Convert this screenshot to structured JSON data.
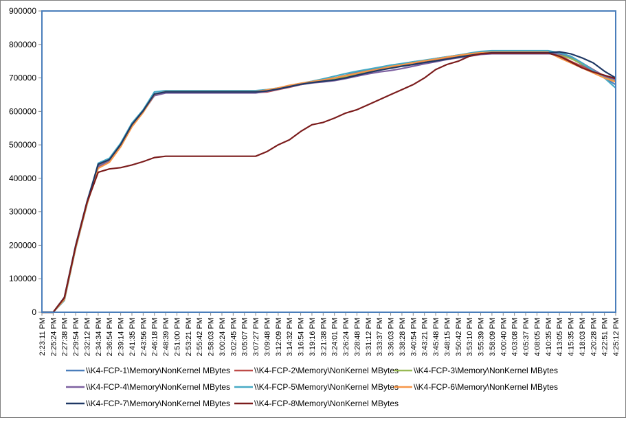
{
  "chart_data": {
    "type": "line",
    "title": "",
    "xlabel": "",
    "ylabel": "",
    "ylim": [
      0,
      900000
    ],
    "y_ticks": [
      "0",
      "100000",
      "200000",
      "300000",
      "400000",
      "500000",
      "600000",
      "700000",
      "800000",
      "900000"
    ],
    "x_categories": [
      "2:23:11 PM",
      "2:25:24 PM",
      "2:27:38 PM",
      "2:29:54 PM",
      "2:32:12 PM",
      "2:34:34 PM",
      "2:36:54 PM",
      "2:39:14 PM",
      "2:41:35 PM",
      "2:43:56 PM",
      "2:46:18 PM",
      "2:48:39 PM",
      "2:51:00 PM",
      "2:53:21 PM",
      "2:55:42 PM",
      "2:58:03 PM",
      "3:00:24 PM",
      "3:02:45 PM",
      "3:05:07 PM",
      "3:07:27 PM",
      "3:09:48 PM",
      "3:12:09 PM",
      "3:14:32 PM",
      "3:16:54 PM",
      "3:19:16 PM",
      "3:21:38 PM",
      "3:24:01 PM",
      "3:26:24 PM",
      "3:28:48 PM",
      "3:31:12 PM",
      "3:33:37 PM",
      "3:36:03 PM",
      "3:38:28 PM",
      "3:40:54 PM",
      "3:43:21 PM",
      "3:45:48 PM",
      "3:48:15 PM",
      "3:50:42 PM",
      "3:53:10 PM",
      "3:55:39 PM",
      "3:58:09 PM",
      "4:00:40 PM",
      "4:03:08 PM",
      "4:05:37 PM",
      "4:08:05 PM",
      "4:10:35 PM",
      "4:13:05 PM",
      "4:15:35 PM",
      "4:18:03 PM",
      "4:20:28 PM",
      "4:22:51 PM",
      "4:25:12 PM"
    ],
    "grid": false,
    "legend_position": "bottom",
    "series": [
      {
        "name": "\\\\K4-FCP-1\\Memory\\NonKernel MBytes",
        "color": "#4a7ebb",
        "values": [
          0,
          0,
          45000,
          200000,
          330000,
          440000,
          455000,
          500000,
          560000,
          600000,
          650000,
          658000,
          658000,
          658000,
          658000,
          658000,
          658000,
          658000,
          658000,
          658000,
          660000,
          668000,
          675000,
          682000,
          688000,
          693000,
          700000,
          708000,
          718000,
          725000,
          730000,
          738000,
          742000,
          748000,
          752000,
          758000,
          763000,
          768000,
          773000,
          776000,
          778000,
          778000,
          778000,
          778000,
          778000,
          778000,
          770000,
          760000,
          740000,
          720000,
          700000,
          680000
        ]
      },
      {
        "name": "\\\\K4-FCP-2\\Memory\\NonKernel MBytes",
        "color": "#be4b48",
        "values": [
          0,
          0,
          42000,
          195000,
          325000,
          435000,
          450000,
          495000,
          555000,
          598000,
          648000,
          656000,
          656000,
          656000,
          656000,
          656000,
          656000,
          656000,
          656000,
          656000,
          658000,
          665000,
          672000,
          680000,
          686000,
          690000,
          695000,
          702000,
          710000,
          718000,
          725000,
          732000,
          738000,
          744000,
          750000,
          755000,
          760000,
          766000,
          770000,
          773000,
          775000,
          775000,
          775000,
          775000,
          775000,
          775000,
          768000,
          750000,
          735000,
          718000,
          700000,
          690000
        ]
      },
      {
        "name": "\\\\K4-FCP-3\\Memory\\NonKernel MBytes",
        "color": "#98b954",
        "values": [
          0,
          0,
          40000,
          195000,
          325000,
          437000,
          452000,
          497000,
          557000,
          600000,
          650000,
          657000,
          657000,
          657000,
          657000,
          657000,
          657000,
          657000,
          657000,
          657000,
          662000,
          668000,
          676000,
          683000,
          688000,
          693000,
          698000,
          705000,
          713000,
          720000,
          727000,
          733000,
          739000,
          745000,
          751000,
          756000,
          762000,
          767000,
          772000,
          775000,
          777000,
          777000,
          777000,
          777000,
          777000,
          777000,
          770000,
          758000,
          742000,
          725000,
          705000,
          688000
        ]
      },
      {
        "name": "\\\\K4-FCP-4\\Memory\\NonKernel MBytes",
        "color": "#7d60a0",
        "values": [
          0,
          0,
          41000,
          196000,
          326000,
          436000,
          451000,
          496000,
          556000,
          599000,
          647000,
          655000,
          655000,
          655000,
          655000,
          655000,
          655000,
          655000,
          655000,
          655000,
          660000,
          666000,
          673000,
          680000,
          685000,
          688000,
          692000,
          698000,
          705000,
          712000,
          718000,
          722000,
          728000,
          735000,
          742000,
          748000,
          755000,
          760000,
          765000,
          770000,
          772000,
          772000,
          772000,
          772000,
          772000,
          772000,
          772000,
          765000,
          745000,
          725000,
          705000,
          695000
        ]
      },
      {
        "name": "\\\\K4-FCP-5\\Memory\\NonKernel MBytes",
        "color": "#46aac5",
        "values": [
          0,
          0,
          35000,
          190000,
          320000,
          445000,
          460000,
          505000,
          565000,
          605000,
          658000,
          662000,
          662000,
          662000,
          662000,
          662000,
          662000,
          662000,
          662000,
          662000,
          665000,
          670000,
          677000,
          684000,
          690000,
          697000,
          705000,
          713000,
          720000,
          726000,
          732000,
          738000,
          743000,
          748000,
          753000,
          758000,
          763000,
          768000,
          774000,
          779000,
          781000,
          781000,
          781000,
          781000,
          781000,
          781000,
          775000,
          765000,
          745000,
          722000,
          700000,
          670000
        ]
      },
      {
        "name": "\\\\K4-FCP-6\\Memory\\NonKernel MBytes",
        "color": "#f79646",
        "values": [
          0,
          0,
          38000,
          192000,
          322000,
          430000,
          448000,
          494000,
          554000,
          597000,
          651000,
          659000,
          659000,
          659000,
          659000,
          659000,
          659000,
          659000,
          659000,
          659000,
          664000,
          670000,
          678000,
          684000,
          689000,
          694000,
          700000,
          707000,
          714000,
          721000,
          727000,
          734000,
          739000,
          745000,
          751000,
          756000,
          762000,
          767000,
          772000,
          775000,
          777000,
          777000,
          777000,
          777000,
          777000,
          777000,
          760000,
          745000,
          730000,
          715000,
          700000,
          688000
        ]
      },
      {
        "name": "\\\\K4-FCP-7\\Memory\\NonKernel MBytes",
        "color": "#1f3864",
        "values": [
          0,
          0,
          43000,
          198000,
          328000,
          442000,
          456000,
          501000,
          561000,
          602000,
          652000,
          658000,
          658000,
          658000,
          658000,
          658000,
          658000,
          658000,
          658000,
          658000,
          661000,
          667000,
          674000,
          681000,
          686000,
          690000,
          694000,
          700000,
          708000,
          716000,
          723000,
          729000,
          735000,
          740000,
          746000,
          751000,
          756000,
          762000,
          767000,
          772000,
          775000,
          775000,
          775000,
          775000,
          775000,
          775000,
          778000,
          772000,
          760000,
          745000,
          720000,
          700000
        ]
      },
      {
        "name": "\\\\K4-FCP-8\\Memory\\NonKernel MBytes",
        "color": "#7b1c1c",
        "values": [
          0,
          0,
          44000,
          197000,
          327000,
          418000,
          428000,
          432000,
          440000,
          450000,
          462000,
          466000,
          466000,
          466000,
          466000,
          466000,
          466000,
          466000,
          466000,
          466000,
          480000,
          500000,
          515000,
          540000,
          560000,
          567000,
          580000,
          595000,
          605000,
          620000,
          635000,
          650000,
          665000,
          680000,
          700000,
          725000,
          740000,
          750000,
          765000,
          772000,
          774000,
          774000,
          774000,
          774000,
          774000,
          774000,
          765000,
          748000,
          730000,
          718000,
          708000,
          698000
        ]
      }
    ]
  }
}
